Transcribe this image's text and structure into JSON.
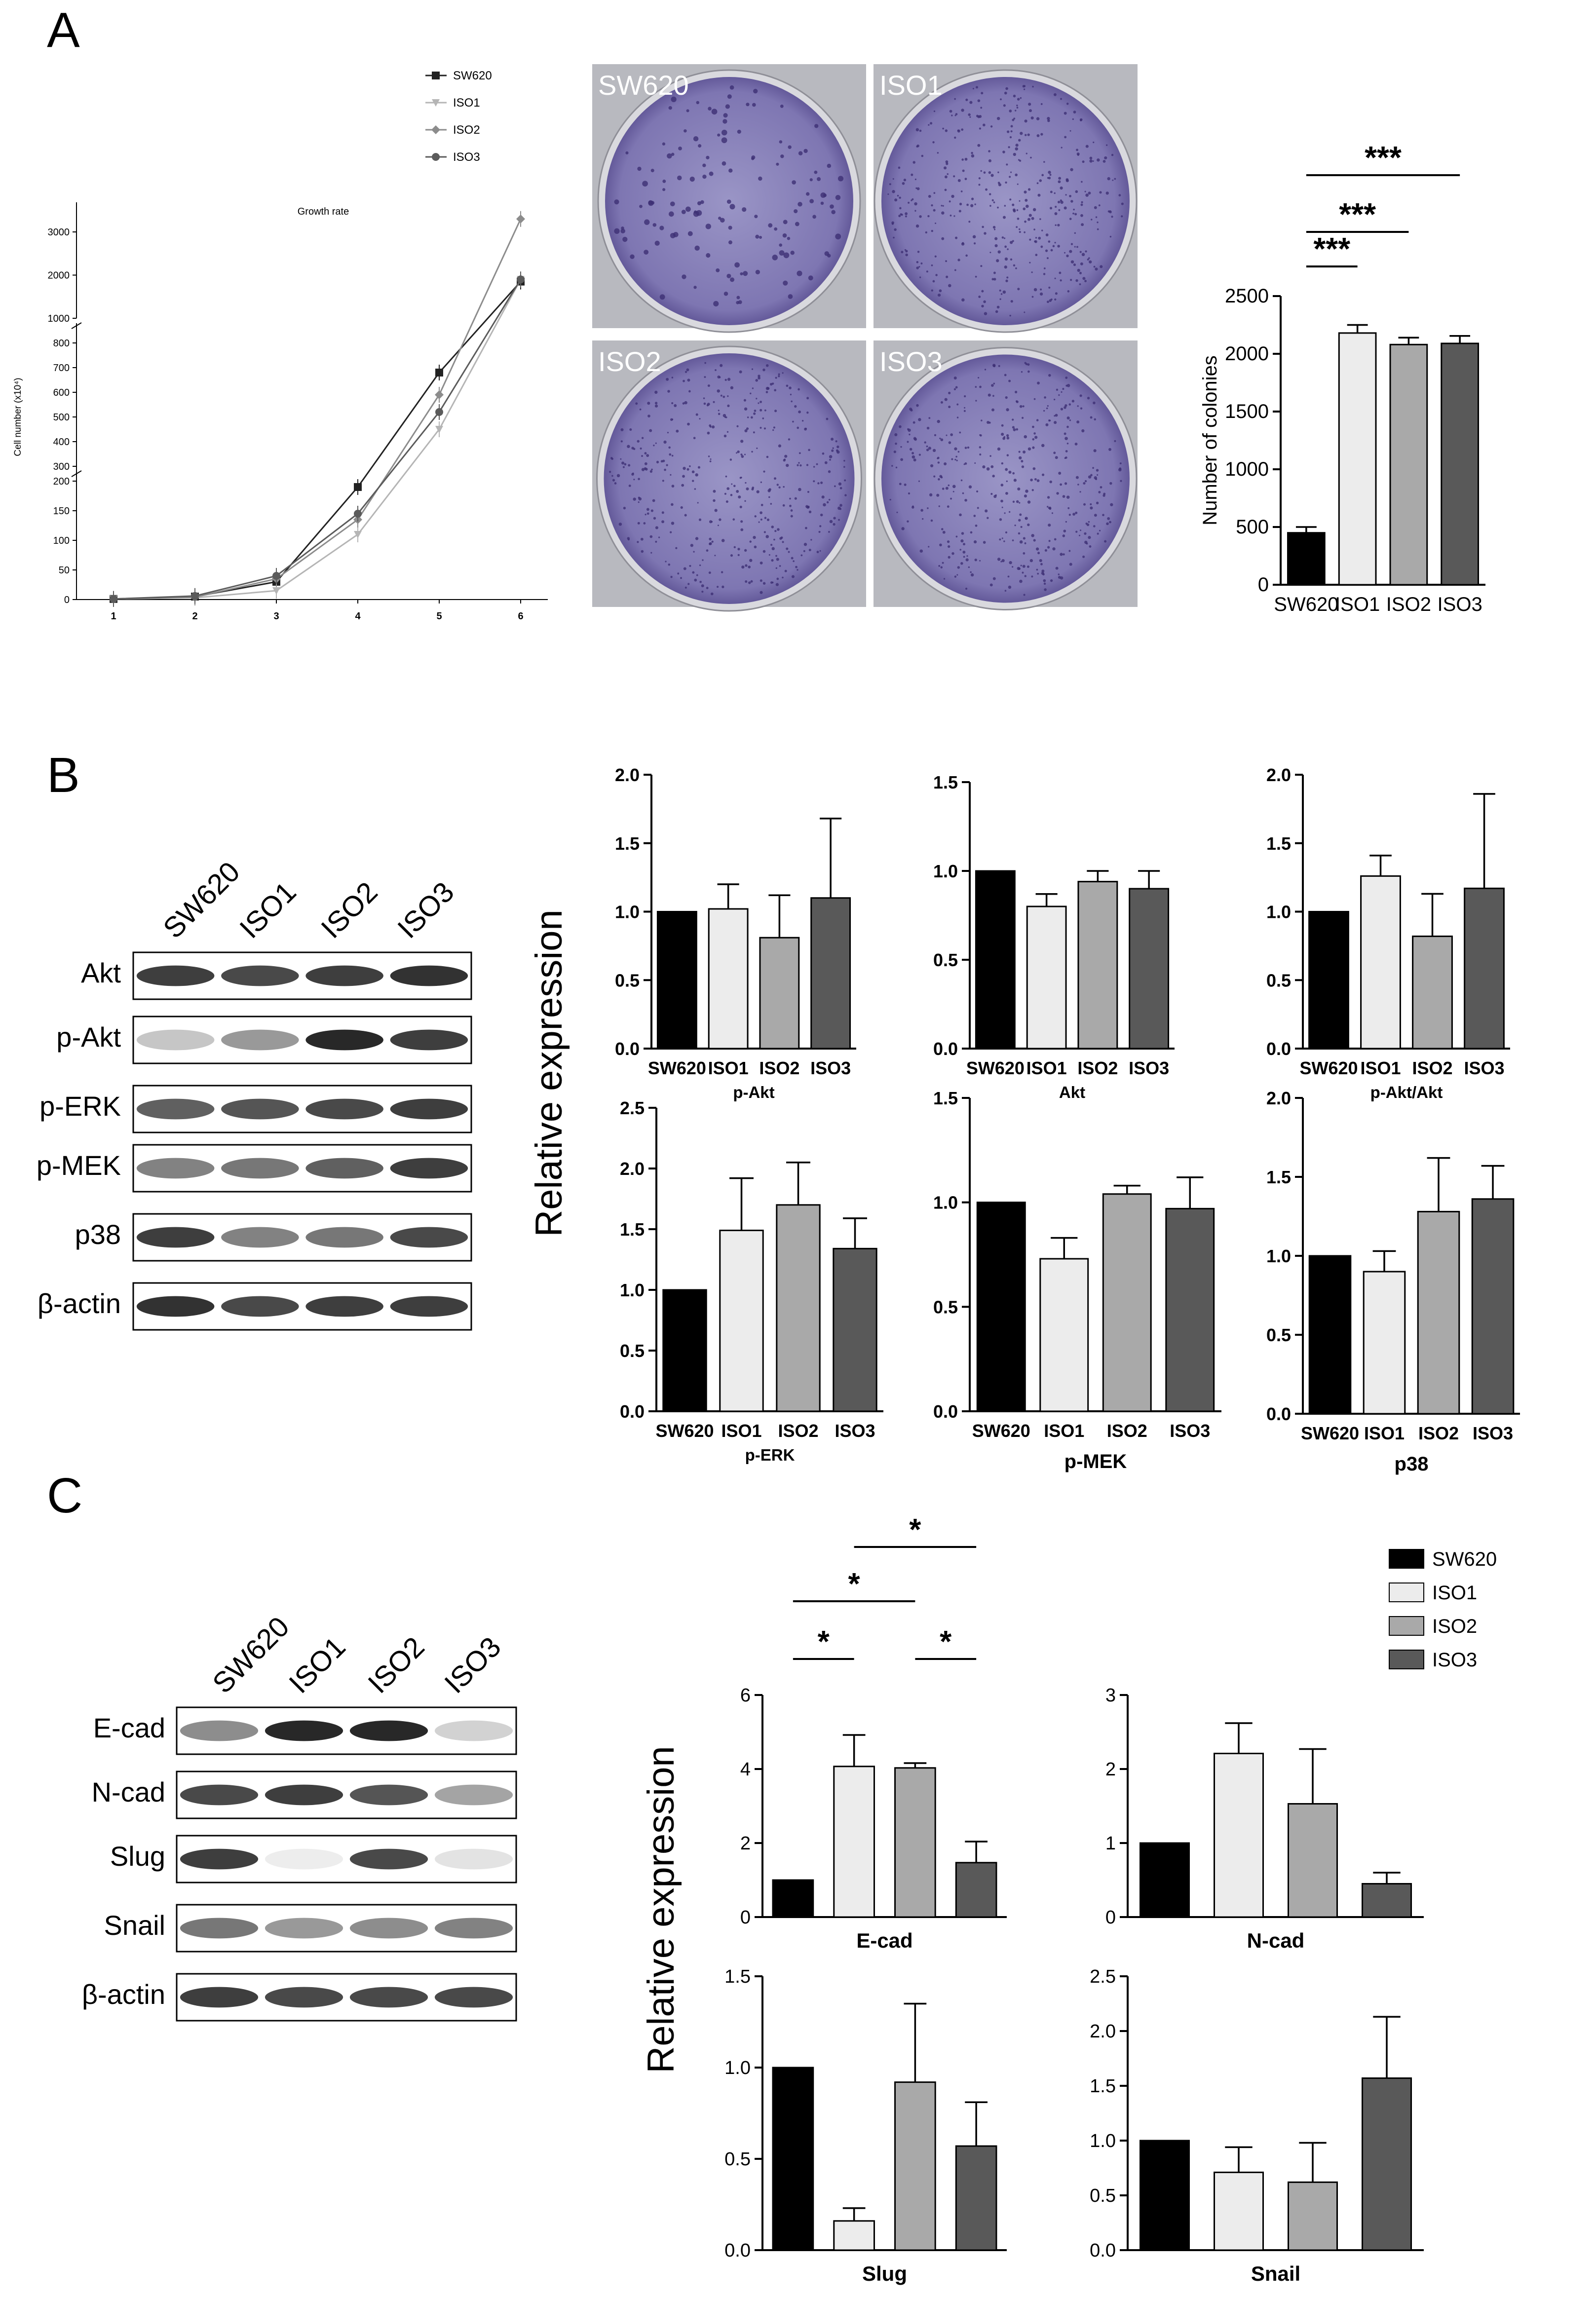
{
  "panels": {
    "A": {
      "letter": "A",
      "growth": {
        "title": "Growth rate",
        "ylabel": "Cell number (x10⁴)",
        "legend": [
          "SW620",
          "ISO1",
          "ISO2",
          "ISO3"
        ],
        "x_ticks": [
          "1",
          "2",
          "3",
          "4",
          "5",
          "6"
        ]
      },
      "dish_labels": [
        "SW620",
        "ISO1",
        "ISO2",
        "ISO3"
      ],
      "colonies": {
        "ylabel": "Number of colonies",
        "significance": [
          "***",
          "***",
          "***"
        ]
      }
    },
    "B": {
      "letter": "B",
      "lanes": [
        "SW620",
        "ISO1",
        "ISO2",
        "ISO3"
      ],
      "blot_rows": [
        "Akt",
        "p-Akt",
        "p-ERK",
        "p-MEK",
        "p38",
        "β-actin"
      ],
      "ylabel": "Relative expression"
    },
    "C": {
      "letter": "C",
      "lanes": [
        "SW620",
        "ISO1",
        "ISO2",
        "ISO3"
      ],
      "blot_rows": [
        "E-cad",
        "N-cad",
        "Slug",
        "Snail",
        "β-actin"
      ],
      "ylabel": "Relative expression",
      "legend": [
        "SW620",
        "ISO1",
        "ISO2",
        "ISO3"
      ],
      "ecad_significance": [
        "*",
        "*",
        "*",
        "*"
      ]
    }
  },
  "colors": {
    "SW620": "#000000",
    "ISO1": "#ececec",
    "ISO2": "#a9a9a9",
    "ISO3": "#595959",
    "dish": "#8a84b8",
    "dish_dark": "#5a4f91"
  },
  "chart_data": [
    {
      "id": "growth",
      "type": "line",
      "title": "Growth rate",
      "ylabel": "Cell number (x10⁴)",
      "x": [
        1,
        2,
        3,
        4,
        5,
        6
      ],
      "y_broken_axis": [
        [
          0,
          200
        ],
        [
          300,
          800
        ],
        [
          1000,
          3000
        ]
      ],
      "y_ticks": [
        0,
        50,
        100,
        150,
        200,
        300,
        400,
        500,
        600,
        700,
        800,
        1000,
        2000,
        3000
      ],
      "series": [
        {
          "name": "SW620",
          "marker": "square",
          "values": [
            1,
            5,
            30,
            190,
            680,
            1850
          ]
        },
        {
          "name": "ISO1",
          "marker": "triangle",
          "values": [
            1,
            3,
            15,
            110,
            450,
            1900
          ]
        },
        {
          "name": "ISO2",
          "marker": "diamond",
          "values": [
            1,
            4,
            35,
            135,
            590,
            3300
          ]
        },
        {
          "name": "ISO3",
          "marker": "circle",
          "values": [
            1,
            6,
            40,
            145,
            520,
            1900
          ]
        }
      ]
    },
    {
      "id": "colonies",
      "type": "bar",
      "categories": [
        "SW620",
        "ISO1",
        "ISO2",
        "ISO3"
      ],
      "values": [
        450,
        2180,
        2080,
        2090
      ],
      "errors": [
        50,
        70,
        60,
        65
      ],
      "ylabel": "Number of colonies",
      "ylim": [
        0,
        2500
      ],
      "y_ticks": [
        0,
        500,
        1000,
        1500,
        2000,
        2500
      ]
    },
    {
      "id": "pakt",
      "type": "bar",
      "xlabel": "p-Akt",
      "categories": [
        "SW620",
        "ISO1",
        "ISO2",
        "ISO3"
      ],
      "values": [
        1.0,
        1.02,
        0.81,
        1.1
      ],
      "errors": [
        0,
        0.18,
        0.31,
        0.58
      ],
      "ylim": [
        0,
        2.0
      ],
      "y_ticks": [
        "0.0",
        "0.5",
        "1.0",
        "1.5",
        "2.0"
      ]
    },
    {
      "id": "akt",
      "type": "bar",
      "xlabel": "Akt",
      "categories": [
        "SW620",
        "ISO1",
        "ISO2",
        "ISO3"
      ],
      "values": [
        1.0,
        0.8,
        0.94,
        0.9
      ],
      "errors": [
        0,
        0.07,
        0.06,
        0.1
      ],
      "ylim": [
        0,
        1.5
      ],
      "y_ticks": [
        "0.0",
        "0.5",
        "1.0",
        "1.5"
      ]
    },
    {
      "id": "paktakt",
      "type": "bar",
      "xlabel": "p-Akt/Akt",
      "categories": [
        "SW620",
        "ISO1",
        "ISO2",
        "ISO3"
      ],
      "values": [
        1.0,
        1.26,
        0.82,
        1.17
      ],
      "errors": [
        0,
        0.15,
        0.31,
        0.69
      ],
      "ylim": [
        0,
        2.0
      ],
      "y_ticks": [
        "0.0",
        "0.5",
        "1.0",
        "1.5",
        "2.0"
      ]
    },
    {
      "id": "perk",
      "type": "bar",
      "xlabel": "p-ERK",
      "categories": [
        "SW620",
        "ISO1",
        "ISO2",
        "ISO3"
      ],
      "values": [
        1.0,
        1.49,
        1.7,
        1.34
      ],
      "errors": [
        0,
        0.43,
        0.35,
        0.25
      ],
      "ylim": [
        0,
        2.5
      ],
      "y_ticks": [
        "0.0",
        "0.5",
        "1.0",
        "1.5",
        "2.0",
        "2.5"
      ]
    },
    {
      "id": "pmek",
      "type": "bar",
      "xlabel": "p-MEK",
      "categories": [
        "SW620",
        "ISO1",
        "ISO2",
        "ISO3"
      ],
      "values": [
        1.0,
        0.73,
        1.04,
        0.97
      ],
      "errors": [
        0,
        0.1,
        0.04,
        0.15
      ],
      "ylim": [
        0,
        1.5
      ],
      "y_ticks": [
        "0.0",
        "0.5",
        "1.0",
        "1.5"
      ]
    },
    {
      "id": "p38",
      "type": "bar",
      "xlabel": "p38",
      "categories": [
        "SW620",
        "ISO1",
        "ISO2",
        "ISO3"
      ],
      "values": [
        1.0,
        0.9,
        1.28,
        1.36
      ],
      "errors": [
        0,
        0.13,
        0.34,
        0.21
      ],
      "ylim": [
        0,
        2.0
      ],
      "y_ticks": [
        "0.0",
        "0.5",
        "1.0",
        "1.5",
        "2.0"
      ]
    },
    {
      "id": "ecad",
      "type": "bar",
      "xlabel": "E-cad",
      "categories": [
        "SW620",
        "ISO1",
        "ISO2",
        "ISO3"
      ],
      "values": [
        1.0,
        4.07,
        4.03,
        1.47
      ],
      "errors": [
        0,
        0.85,
        0.13,
        0.57
      ],
      "ylim": [
        0,
        6
      ],
      "y_ticks": [
        "0",
        "2",
        "4",
        "6"
      ]
    },
    {
      "id": "ncad",
      "type": "bar",
      "xlabel": "N-cad",
      "categories": [
        "SW620",
        "ISO1",
        "ISO2",
        "ISO3"
      ],
      "values": [
        1.0,
        2.21,
        1.53,
        0.45
      ],
      "errors": [
        0,
        0.41,
        0.74,
        0.15
      ],
      "ylim": [
        0,
        3
      ],
      "y_ticks": [
        "0",
        "1",
        "2",
        "3"
      ]
    },
    {
      "id": "slug",
      "type": "bar",
      "xlabel": "Slug",
      "categories": [
        "SW620",
        "ISO1",
        "ISO2",
        "ISO3"
      ],
      "values": [
        1.0,
        0.16,
        0.92,
        0.57
      ],
      "errors": [
        0,
        0.07,
        0.43,
        0.24
      ],
      "ylim": [
        0,
        1.5
      ],
      "y_ticks": [
        "0.0",
        "0.5",
        "1.0",
        "1.5"
      ]
    },
    {
      "id": "snail",
      "type": "bar",
      "xlabel": "Snail",
      "categories": [
        "SW620",
        "ISO1",
        "ISO2",
        "ISO3"
      ],
      "values": [
        1.0,
        0.71,
        0.62,
        1.57
      ],
      "errors": [
        0,
        0.23,
        0.36,
        0.56
      ],
      "ylim": [
        0,
        2.5
      ],
      "y_ticks": [
        "0.0",
        "0.5",
        "1.0",
        "1.5",
        "2.0",
        "2.5"
      ]
    }
  ]
}
